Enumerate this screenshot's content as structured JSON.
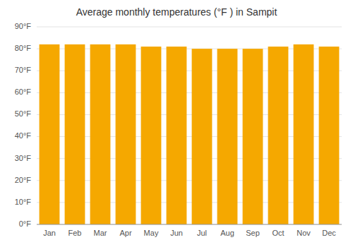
{
  "chart_data": {
    "type": "bar",
    "title": "Average monthly temperatures (°F ) in Sampit",
    "categories": [
      "Jan",
      "Feb",
      "Mar",
      "Apr",
      "May",
      "Jun",
      "Jul",
      "Aug",
      "Sep",
      "Oct",
      "Nov",
      "Dec"
    ],
    "values": [
      82,
      82,
      82,
      82,
      81,
      81,
      80,
      80,
      80,
      81,
      82,
      81
    ],
    "color": "#F5A800",
    "ylim": [
      0,
      90
    ],
    "yticks": [
      {
        "value": 0,
        "label": "0°F"
      },
      {
        "value": 10,
        "label": "10°F"
      },
      {
        "value": 20,
        "label": "20°F"
      },
      {
        "value": 30,
        "label": "30°F"
      },
      {
        "value": 40,
        "label": "40°F"
      },
      {
        "value": 50,
        "label": "50°F"
      },
      {
        "value": 60,
        "label": "60°F"
      },
      {
        "value": 70,
        "label": "70°F"
      },
      {
        "value": 80,
        "label": "80°F"
      },
      {
        "value": 90,
        "label": "90°F"
      }
    ],
    "grid": true
  }
}
